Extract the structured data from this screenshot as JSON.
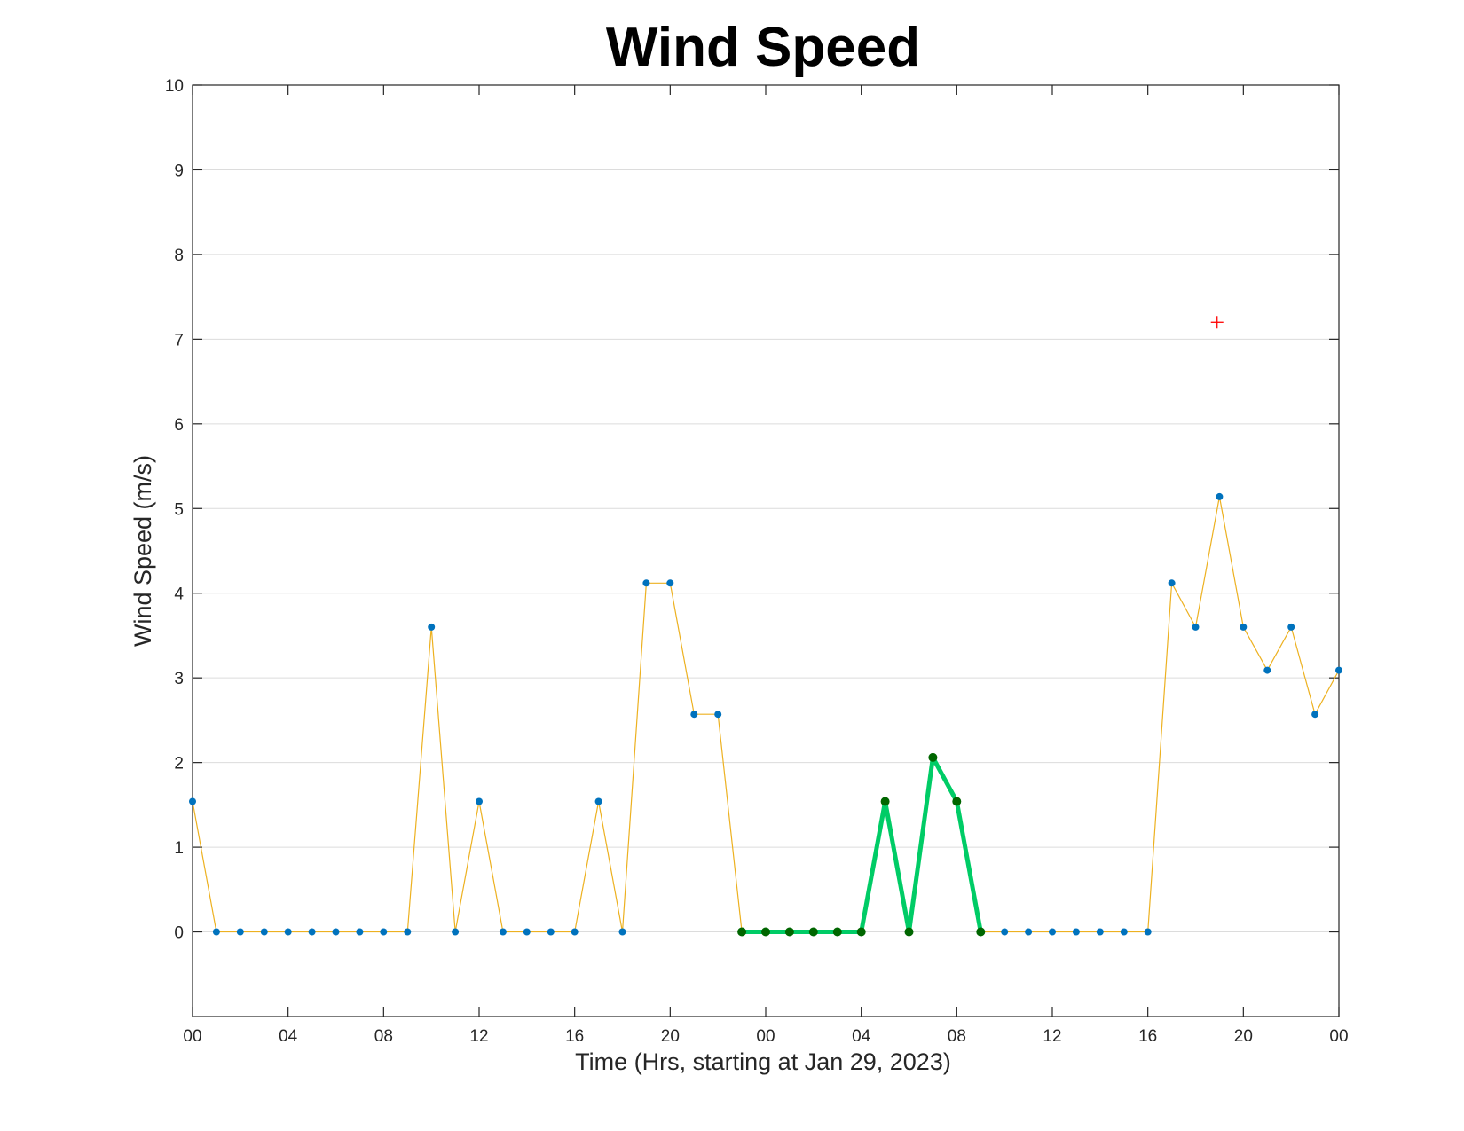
{
  "chart_data": {
    "type": "line",
    "title": "Wind Speed",
    "xlabel": "Time (Hrs, starting at Jan 29, 2023)",
    "ylabel": "Wind Speed (m/s)",
    "xlim": [
      0,
      48
    ],
    "ylim": [
      -1,
      10
    ],
    "yticks": [
      0,
      1,
      2,
      3,
      4,
      5,
      6,
      7,
      8,
      9,
      10
    ],
    "xticks": [
      0,
      4,
      8,
      12,
      16,
      20,
      24,
      28,
      32,
      36,
      40,
      44,
      48
    ],
    "xtick_labels": [
      "00",
      "04",
      "08",
      "12",
      "16",
      "20",
      "00",
      "04",
      "08",
      "12",
      "16",
      "20",
      "00"
    ],
    "grid": "horizontal",
    "series": [
      {
        "color": "#EDB120",
        "marker_color": "#0072BD",
        "x": [
          0,
          1,
          2,
          3,
          4,
          5,
          6,
          7,
          8,
          9,
          10,
          11,
          12,
          13,
          14,
          15,
          16,
          17,
          18,
          19,
          20,
          21,
          22,
          23,
          24,
          25,
          26,
          27,
          28,
          29,
          30,
          31,
          32,
          33,
          34,
          35,
          36,
          37,
          38,
          39,
          40,
          41,
          42,
          43,
          44,
          45,
          46,
          47,
          48
        ],
        "values": [
          1.54,
          0,
          0,
          0,
          0,
          0,
          0,
          0,
          0,
          0,
          3.6,
          0,
          1.54,
          0,
          0,
          0,
          0,
          1.54,
          0,
          4.12,
          4.12,
          2.57,
          2.57,
          0,
          0,
          0,
          0,
          0,
          0,
          1.54,
          0,
          2.06,
          1.54,
          0,
          0,
          0,
          0,
          0,
          0,
          0,
          0,
          4.12,
          3.6,
          5.14,
          3.6,
          3.09,
          3.6,
          2.57,
          3.09
        ]
      },
      {
        "color": "#00CC66",
        "marker_color": "#006600",
        "x": [
          23,
          24,
          25,
          26,
          27,
          28,
          29,
          30,
          31,
          32,
          33
        ],
        "values": [
          0,
          0,
          0,
          0,
          0,
          0,
          1.54,
          0,
          2.06,
          1.54,
          0
        ]
      }
    ],
    "annotations": [
      {
        "marker": "+",
        "color": "#FF0000",
        "x": 42.9,
        "y": 7.2
      }
    ]
  }
}
